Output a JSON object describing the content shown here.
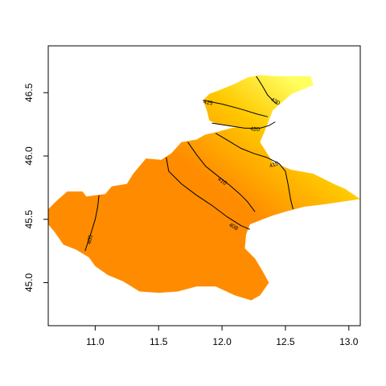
{
  "chart_data": {
    "type": "heatmap",
    "title": "",
    "xlabel": "",
    "ylabel": "",
    "xlim": [
      10.63,
      13.09
    ],
    "ylim": [
      44.66,
      46.87
    ],
    "x_ticks": [
      {
        "value": 11.0,
        "label": "11.0"
      },
      {
        "value": 11.5,
        "label": "11.5"
      },
      {
        "value": 12.0,
        "label": "12.0"
      },
      {
        "value": 12.5,
        "label": "12.5"
      },
      {
        "value": 13.0,
        "label": "13.0"
      }
    ],
    "y_ticks": [
      {
        "value": 45.0,
        "label": "45.0"
      },
      {
        "value": 45.5,
        "label": "45.5"
      },
      {
        "value": 46.0,
        "label": "46.0"
      },
      {
        "value": 46.5,
        "label": "46.5"
      }
    ],
    "color_scale": {
      "low": "#ff8c00",
      "mid": "#ffc800",
      "high": "#ffff60"
    },
    "region_outline": [
      [
        10.63,
        45.58
      ],
      [
        10.7,
        45.65
      ],
      [
        10.78,
        45.72
      ],
      [
        10.9,
        45.72
      ],
      [
        10.93,
        45.68
      ],
      [
        11.08,
        45.7
      ],
      [
        11.13,
        45.76
      ],
      [
        11.25,
        45.78
      ],
      [
        11.3,
        45.86
      ],
      [
        11.4,
        45.98
      ],
      [
        11.52,
        45.97
      ],
      [
        11.6,
        46.02
      ],
      [
        11.68,
        46.11
      ],
      [
        11.8,
        46.13
      ],
      [
        11.87,
        46.17
      ],
      [
        11.96,
        46.19
      ],
      [
        12.07,
        46.22
      ],
      [
        12.14,
        46.23
      ],
      [
        11.97,
        46.25
      ],
      [
        11.9,
        46.28
      ],
      [
        11.88,
        46.36
      ],
      [
        11.85,
        46.44
      ],
      [
        11.9,
        46.49
      ],
      [
        11.98,
        46.52
      ],
      [
        12.1,
        46.57
      ],
      [
        12.2,
        46.62
      ],
      [
        12.3,
        46.64
      ],
      [
        12.42,
        46.63
      ],
      [
        12.56,
        46.63
      ],
      [
        12.7,
        46.63
      ],
      [
        12.72,
        46.56
      ],
      [
        12.65,
        46.53
      ],
      [
        12.55,
        46.49
      ],
      [
        12.48,
        46.43
      ],
      [
        12.4,
        46.36
      ],
      [
        12.35,
        46.23
      ],
      [
        12.3,
        46.11
      ],
      [
        12.4,
        45.95
      ],
      [
        12.55,
        45.89
      ],
      [
        12.72,
        45.86
      ],
      [
        12.88,
        45.78
      ],
      [
        12.97,
        45.74
      ],
      [
        13.09,
        45.66
      ],
      [
        12.95,
        45.64
      ],
      [
        12.82,
        45.62
      ],
      [
        12.65,
        45.6
      ],
      [
        12.5,
        45.56
      ],
      [
        12.4,
        45.53
      ],
      [
        12.32,
        45.5
      ],
      [
        12.22,
        45.46
      ],
      [
        12.19,
        45.38
      ],
      [
        12.18,
        45.27
      ],
      [
        12.26,
        45.19
      ],
      [
        12.32,
        45.09
      ],
      [
        12.37,
        45.0
      ],
      [
        12.3,
        44.9
      ],
      [
        12.23,
        44.86
      ],
      [
        12.1,
        44.9
      ],
      [
        11.95,
        44.97
      ],
      [
        11.8,
        44.97
      ],
      [
        11.65,
        44.93
      ],
      [
        11.5,
        44.92
      ],
      [
        11.35,
        44.93
      ],
      [
        11.22,
        45.01
      ],
      [
        11.1,
        45.06
      ],
      [
        11.0,
        45.13
      ],
      [
        10.95,
        45.2
      ],
      [
        10.85,
        45.26
      ],
      [
        10.75,
        45.3
      ],
      [
        10.68,
        45.4
      ],
      [
        10.63,
        45.46
      ]
    ],
    "contours": [
      {
        "level": 405,
        "label": "405",
        "points": [
          [
            11.03,
            45.69
          ],
          [
            11.02,
            45.6
          ],
          [
            11.0,
            45.5
          ],
          [
            10.97,
            45.4
          ],
          [
            10.94,
            45.31
          ],
          [
            10.92,
            45.25
          ]
        ],
        "label_at": [
          10.96,
          45.34
        ],
        "label_angle": -80
      },
      {
        "level": 408,
        "label": "408",
        "points": [
          [
            11.56,
            45.99
          ],
          [
            11.58,
            45.88
          ],
          [
            11.68,
            45.78
          ],
          [
            11.8,
            45.69
          ],
          [
            11.92,
            45.61
          ],
          [
            12.04,
            45.52
          ],
          [
            12.15,
            45.45
          ],
          [
            12.22,
            45.42
          ]
        ],
        "label_at": [
          12.09,
          45.44
        ],
        "label_angle": 30
      },
      {
        "level": 410,
        "label": "410",
        "points": [
          [
            11.73,
            46.11
          ],
          [
            11.8,
            46.01
          ],
          [
            11.87,
            45.92
          ],
          [
            11.97,
            45.84
          ],
          [
            12.06,
            45.77
          ],
          [
            12.14,
            45.7
          ],
          [
            12.2,
            45.64
          ],
          [
            12.26,
            45.56
          ]
        ],
        "label_at": [
          12.0,
          45.8
        ],
        "label_angle": 35
      },
      {
        "level": 415,
        "label": "415",
        "points": [
          [
            11.95,
            46.18
          ],
          [
            12.05,
            46.12
          ],
          [
            12.15,
            46.06
          ],
          [
            12.25,
            46.02
          ],
          [
            12.35,
            45.99
          ],
          [
            12.45,
            45.94
          ],
          [
            12.5,
            45.88
          ],
          [
            12.52,
            45.78
          ],
          [
            12.54,
            45.66
          ],
          [
            12.56,
            45.58
          ]
        ],
        "label_at": [
          12.41,
          45.93
        ],
        "label_angle": -20
      },
      {
        "level": 420,
        "label": "420",
        "points": [
          [
            11.92,
            46.26
          ],
          [
            12.05,
            46.24
          ],
          [
            12.18,
            46.22
          ],
          [
            12.3,
            46.22
          ],
          [
            12.37,
            46.24
          ],
          [
            12.42,
            46.27
          ]
        ],
        "label_at": [
          12.26,
          46.21
        ],
        "label_angle": 5
      },
      {
        "level": 425,
        "label": "425",
        "points": [
          [
            11.85,
            46.44
          ],
          [
            12.0,
            46.41
          ],
          [
            12.15,
            46.37
          ],
          [
            12.28,
            46.33
          ],
          [
            12.36,
            46.31
          ]
        ],
        "label_at": [
          11.89,
          46.42
        ],
        "label_angle": 10
      },
      {
        "level": 430,
        "label": "430",
        "points": [
          [
            12.27,
            46.63
          ],
          [
            12.32,
            46.55
          ],
          [
            12.36,
            46.48
          ],
          [
            12.43,
            46.41
          ]
        ],
        "label_at": [
          12.42,
          46.43
        ],
        "label_angle": 30
      }
    ]
  }
}
